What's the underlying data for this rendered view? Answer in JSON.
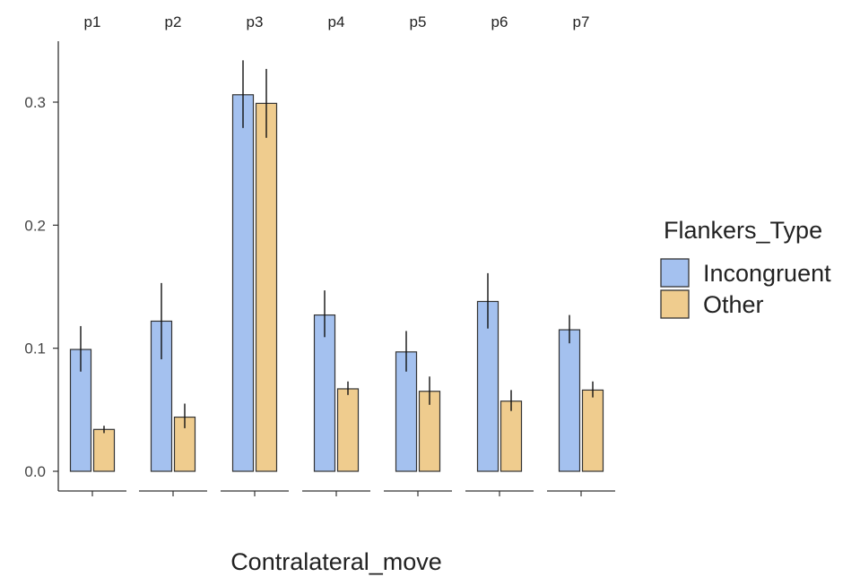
{
  "chart_data": {
    "type": "bar",
    "facets": [
      "p1",
      "p2",
      "p3",
      "p4",
      "p5",
      "p6",
      "p7"
    ],
    "series": [
      {
        "name": "Incongruent",
        "color": "#a4c1ef",
        "values": [
          0.099,
          0.122,
          0.306,
          0.127,
          0.097,
          0.138,
          0.115
        ],
        "err_low": [
          0.081,
          0.091,
          0.279,
          0.109,
          0.081,
          0.116,
          0.104
        ],
        "err_high": [
          0.118,
          0.153,
          0.334,
          0.147,
          0.114,
          0.161,
          0.127
        ]
      },
      {
        "name": "Other",
        "color": "#efcc8e",
        "values": [
          0.034,
          0.044,
          0.299,
          0.067,
          0.065,
          0.057,
          0.066
        ],
        "err_low": [
          0.031,
          0.035,
          0.271,
          0.062,
          0.054,
          0.049,
          0.06
        ],
        "err_high": [
          0.037,
          0.055,
          0.327,
          0.073,
          0.077,
          0.066,
          0.073
        ]
      }
    ],
    "xlabel": "Contralateral_move",
    "ylabel": "",
    "ylim": [
      0,
      0.35
    ],
    "yticks": [
      0.0,
      0.1,
      0.2,
      0.3
    ],
    "ytick_labels": [
      "0.0",
      "0.1",
      "0.2",
      "0.3"
    ],
    "legend_title": "Flankers_Type",
    "legend_position": "right",
    "grid": false
  }
}
